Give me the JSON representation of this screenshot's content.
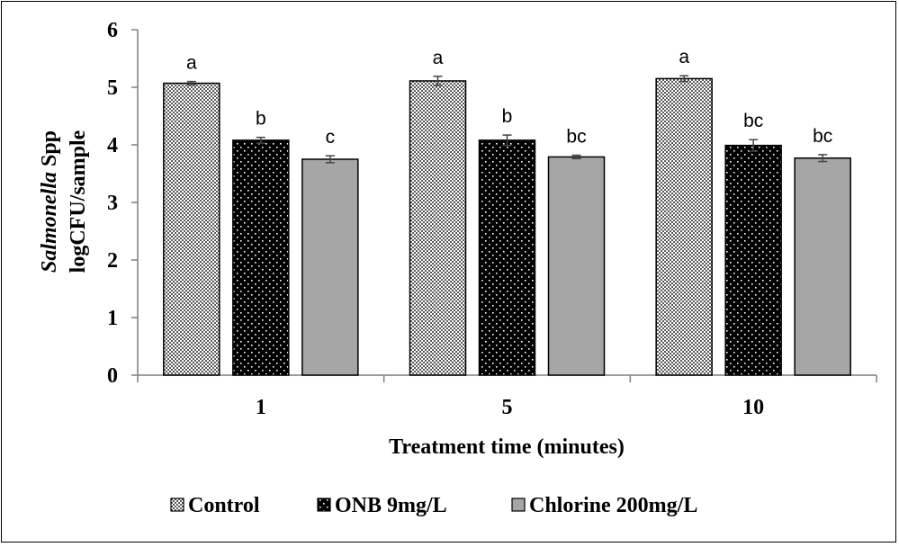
{
  "chart_data": {
    "type": "bar",
    "categories": [
      "1",
      "5",
      "10"
    ],
    "series": [
      {
        "name": "Control",
        "values": [
          5.07,
          5.11,
          5.15
        ],
        "errors": [
          0.03,
          0.08,
          0.05
        ],
        "letters": [
          "a",
          "a",
          "a"
        ],
        "pattern": "checker"
      },
      {
        "name": "ONB 9mg/L",
        "values": [
          4.08,
          4.08,
          3.99
        ],
        "errors": [
          0.05,
          0.09,
          0.1
        ],
        "letters": [
          "b",
          "b",
          "bc"
        ],
        "pattern": "dots"
      },
      {
        "name": "Chlorine 200mg/L",
        "values": [
          3.75,
          3.79,
          3.77
        ],
        "errors": [
          0.06,
          0.03,
          0.06
        ],
        "letters": [
          "c",
          "bc",
          "bc"
        ],
        "pattern": "solid"
      }
    ],
    "xlabel": "Treatment time (minutes)",
    "ylabel_italic": "Salmonella",
    "ylabel_rest": " Spp",
    "ylabel_line2": "logCFU/sample",
    "ylim": [
      0,
      6
    ],
    "yticks": [
      0,
      1,
      2,
      3,
      4,
      5,
      6
    ],
    "grid": false,
    "legend_position": "bottom",
    "colors": {
      "control_bg": "#e0e0e0",
      "onb": "#000000",
      "chlorine": "#a6a6a6",
      "axis": "#7f7f7f"
    }
  }
}
